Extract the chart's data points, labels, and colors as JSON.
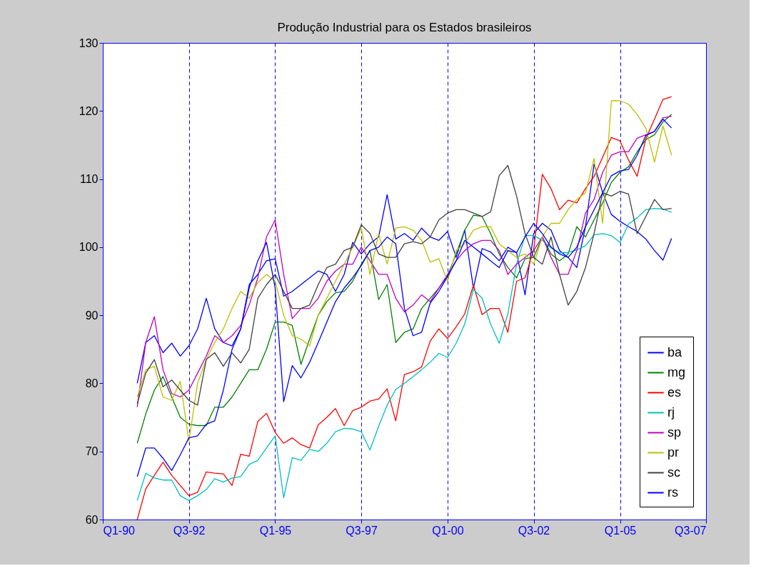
{
  "chart_data": {
    "type": "line",
    "title": "Produção Industrial para os Estados brasileiros",
    "x": [
      "1991-01",
      "1991-04",
      "1991-07",
      "1991-10",
      "1992-01",
      "1992-04",
      "1992-07",
      "1992-10",
      "1993-01",
      "1993-04",
      "1993-07",
      "1993-10",
      "1994-01",
      "1994-04",
      "1994-07",
      "1994-10",
      "1995-01",
      "1995-04",
      "1995-07",
      "1995-10",
      "1996-01",
      "1996-04",
      "1996-07",
      "1996-10",
      "1997-01",
      "1997-04",
      "1997-07",
      "1997-10",
      "1998-01",
      "1998-04",
      "1998-07",
      "1998-10",
      "1999-01",
      "1999-04",
      "1999-07",
      "1999-10",
      "2000-01",
      "2000-04",
      "2000-07",
      "2000-10",
      "2001-01",
      "2001-04",
      "2001-07",
      "2001-10",
      "2002-01",
      "2002-04",
      "2002-07",
      "2002-10",
      "2003-01",
      "2003-04",
      "2003-07",
      "2003-10",
      "2004-01",
      "2004-04",
      "2004-07",
      "2004-10",
      "2005-01",
      "2005-04",
      "2005-07",
      "2005-10",
      "2006-01",
      "2006-04",
      "2006-07"
    ],
    "xlim": [
      "1990-01",
      "2007-07"
    ],
    "xticks": [
      {
        "value": "1990-01",
        "label": "Q1-90"
      },
      {
        "value": "1992-07",
        "label": "Q3-92"
      },
      {
        "value": "1995-01",
        "label": "Q1-95"
      },
      {
        "value": "1997-07",
        "label": "Q3-97"
      },
      {
        "value": "2000-01",
        "label": "Q1-00"
      },
      {
        "value": "2002-07",
        "label": "Q3-02"
      },
      {
        "value": "2005-01",
        "label": "Q1-05"
      },
      {
        "value": "2007-07",
        "label": "Q3-07"
      }
    ],
    "ylim": [
      60,
      130
    ],
    "yticks": [
      60,
      70,
      80,
      90,
      100,
      110,
      120,
      130
    ],
    "grid": "x",
    "legend": "bottom right",
    "line_style": "solid",
    "series": [
      {
        "name": "ba",
        "color": "#0000ff",
        "values": [
          80,
          86,
          87,
          84.5,
          85.9,
          84,
          85.5,
          88,
          92.5,
          88,
          86,
          85.5,
          88,
          94.5,
          96,
          98,
          98.3,
          92.8,
          93.5,
          94.5,
          95.5,
          96.5,
          96,
          93.5,
          96,
          100.7,
          99,
          100.5,
          101.5,
          107.7,
          101.2,
          102,
          101,
          102.8,
          101.5,
          101,
          102.3,
          98.5,
          102.5,
          94,
          99.8,
          99.3,
          98,
          100,
          99.2,
          93,
          102,
          103.5,
          102.5,
          99.5,
          98.5,
          97,
          103,
          112.2,
          108,
          104.8,
          103.8,
          103,
          102.3,
          101.2,
          99.5,
          98.1,
          101.3
        ]
      },
      {
        "name": "mg",
        "color": "#008000",
        "values": [
          71.2,
          75.5,
          79,
          81,
          78,
          75,
          74,
          73.8,
          73.8,
          76.5,
          76.5,
          78,
          80,
          82,
          82,
          85,
          89,
          89,
          88.5,
          82.8,
          86.5,
          90,
          92,
          93.3,
          93.5,
          95,
          97.5,
          99.5,
          92.3,
          94.5,
          86,
          87.5,
          88,
          91,
          92.5,
          94,
          95.8,
          99,
          102.5,
          104.7,
          104.5,
          102,
          99,
          97,
          95.5,
          98.3,
          98.5,
          101.5,
          99,
          98,
          99,
          103,
          101.5,
          104,
          106.5,
          109.5,
          111,
          111.8,
          114,
          115.8,
          116.5,
          118.4,
          119.5
        ]
      },
      {
        "name": "es",
        "color": "#ff0000",
        "values": [
          60,
          64.5,
          66.5,
          68.4,
          66.5,
          65,
          63.5,
          64,
          67,
          66.8,
          66.7,
          65,
          69.6,
          69.3,
          74.4,
          75.6,
          72.8,
          71.2,
          72,
          71,
          70.5,
          73.9,
          75,
          76.3,
          73.8,
          76,
          76.5,
          77.4,
          77.7,
          79.2,
          74.5,
          81.3,
          81.7,
          82.4,
          86.2,
          88,
          86.6,
          88.3,
          90.2,
          94.4,
          90.1,
          91,
          91,
          87.5,
          95,
          95.5,
          99.6,
          110.7,
          108.6,
          105.5,
          106.9,
          106.5,
          108.6,
          110.4,
          113.2,
          116.1,
          115.6,
          112.8,
          110.4,
          115.9,
          118.8,
          121.7,
          122.1
        ]
      },
      {
        "name": "rj",
        "color": "#00bfbf",
        "values": [
          62.8,
          66.8,
          66.1,
          65.8,
          65.8,
          63.5,
          62.8,
          63.5,
          64.4,
          66,
          65.5,
          66.1,
          66.3,
          68.1,
          68.7,
          70.5,
          72.3,
          63.2,
          69.1,
          68.7,
          70.3,
          70,
          71.2,
          72.9,
          73.4,
          73.3,
          72.9,
          70.2,
          73.7,
          76.8,
          79.1,
          80,
          81,
          82,
          83.1,
          84.4,
          83.8,
          85.9,
          88.7,
          93.8,
          92.5,
          88.7,
          85.9,
          90.2,
          97.5,
          101.7,
          101.7,
          101,
          99.9,
          99.2,
          99.2,
          99.6,
          100.2,
          101.8,
          102,
          101.7,
          100.7,
          103.4,
          104.3,
          105.5,
          105.7,
          105.6,
          105.1
        ]
      },
      {
        "name": "sp",
        "color": "#bf00bf",
        "values": [
          76.5,
          86,
          89.8,
          82,
          78.5,
          78,
          79,
          81.5,
          84,
          87,
          86,
          87,
          88.5,
          91.5,
          95.5,
          101.5,
          104,
          96,
          89.5,
          91,
          91,
          92.5,
          95,
          96.5,
          97.5,
          97.5,
          100,
          98,
          96,
          96,
          92.5,
          90.5,
          91.5,
          93,
          92,
          94,
          96,
          98,
          99.5,
          100.5,
          101,
          101,
          99.5,
          96,
          97.5,
          98.5,
          99.5,
          101.5,
          98.5,
          96,
          96,
          99.5,
          105,
          107,
          111,
          113.5,
          114,
          114,
          116,
          116.5,
          117,
          119,
          119.2
        ]
      },
      {
        "name": "pr",
        "color": "#bfbf00",
        "values": [
          78,
          82,
          82.5,
          78,
          77.5,
          80.3,
          71.5,
          80,
          83.5,
          86,
          88,
          91,
          93.5,
          92.5,
          94.8,
          96,
          95,
          90,
          87,
          86.5,
          85.5,
          90,
          92.5,
          95,
          97.5,
          100,
          102.8,
          96,
          102,
          97.5,
          102.8,
          103,
          102.5,
          101,
          97.8,
          98.3,
          95,
          99.5,
          100.5,
          102.5,
          103,
          103,
          100.5,
          99.5,
          98.5,
          99,
          97.5,
          101.5,
          103.5,
          103.5,
          105.5,
          107,
          108,
          113,
          103.5,
          121.5,
          121.5,
          121,
          119.5,
          117.5,
          112.5,
          117.8,
          113.5
        ]
      },
      {
        "name": "sc",
        "color": "#404040",
        "values": [
          77,
          81.5,
          83.5,
          79.5,
          80.5,
          79,
          77.5,
          76.8,
          83.5,
          84.5,
          82.5,
          84.5,
          83,
          85,
          92.5,
          94.5,
          96,
          93.5,
          91,
          91,
          91.5,
          94.5,
          97,
          97.5,
          99.5,
          100,
          103.3,
          102,
          99,
          98.5,
          98.5,
          100.5,
          100.8,
          100.5,
          101.5,
          104,
          105,
          105.5,
          105.5,
          105,
          104.5,
          105.2,
          110.5,
          112,
          107.5,
          102,
          98.5,
          97.5,
          101.5,
          96,
          91.5,
          93.5,
          97,
          102,
          108,
          107.5,
          108.2,
          107.8,
          102,
          104.5,
          107,
          105.5,
          105.7
        ]
      },
      {
        "name": "rs",
        "color": "#0000ff",
        "values": [
          66.3,
          70.5,
          70.5,
          69,
          67.2,
          69.5,
          72,
          72.3,
          74,
          74.5,
          79,
          85,
          88,
          94,
          98,
          100.7,
          94,
          77.3,
          82.6,
          80.8,
          83.1,
          86,
          89,
          92,
          94,
          95.5,
          97.3,
          99.5,
          100,
          101.5,
          100.5,
          91,
          87,
          87.5,
          91.8,
          93.5,
          95.7,
          98,
          101,
          100,
          99,
          98,
          97,
          99.5,
          99.2,
          101.5,
          103.5,
          102,
          100,
          99,
          98.5,
          100,
          103,
          105.5,
          108,
          110.5,
          111.2,
          111.4,
          113.5,
          116.4,
          117,
          118.8,
          117.5
        ]
      }
    ]
  }
}
